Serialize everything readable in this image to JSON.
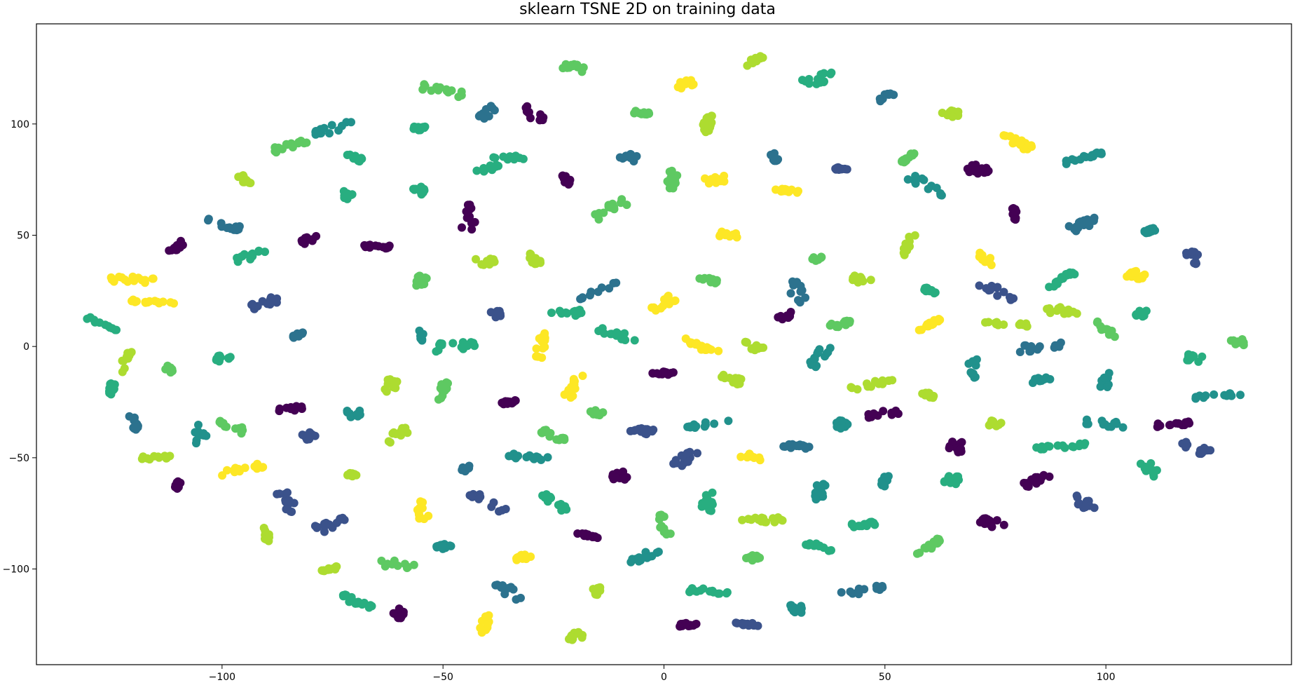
{
  "chart_data": {
    "type": "scatter",
    "title": "sklearn TSNE 2D on training data",
    "xlabel": "",
    "ylabel": "",
    "xlim": [
      -142,
      142
    ],
    "ylim": [
      -143,
      145
    ],
    "xticks": [
      -100,
      -50,
      0,
      50,
      100
    ],
    "yticks": [
      -100,
      -50,
      0,
      50,
      100
    ],
    "xtick_labels": [
      "−100",
      "−50",
      "0",
      "50",
      "100"
    ],
    "ytick_labels": [
      "−100",
      "−50",
      "0",
      "50",
      "100"
    ],
    "grid": false,
    "legend": "none",
    "colormap": "viridis",
    "palette": [
      "#440154",
      "#3b528b",
      "#2c728e",
      "#21918c",
      "#28ae80",
      "#5ec962",
      "#addc30",
      "#fde725"
    ],
    "clusters": [
      {
        "x": 0.0,
        "y": 19.0,
        "class": 7
      },
      {
        "x": 27.0,
        "y": 13.0,
        "class": 0
      },
      {
        "x": 0.0,
        "y": -12.0,
        "class": 0
      },
      {
        "x": -20.0,
        "y": -18.0,
        "class": 7
      },
      {
        "x": -17.0,
        "y": -85.0,
        "class": 0
      },
      {
        "x": -10.0,
        "y": -58.0,
        "class": 0
      },
      {
        "x": 20.0,
        "y": -50.0,
        "class": 7
      },
      {
        "x": -32.0,
        "y": -95.0,
        "class": 7
      },
      {
        "x": 5.0,
        "y": 118.0,
        "class": 7
      },
      {
        "x": -40.0,
        "y": 38.0,
        "class": 6
      },
      {
        "x": -44.0,
        "y": 58.0,
        "class": 0
      },
      {
        "x": 47.0,
        "y": -17.0,
        "class": 6
      },
      {
        "x": 50.0,
        "y": -30.0,
        "class": 0
      },
      {
        "x": 66.0,
        "y": -45.0,
        "class": 0
      },
      {
        "x": 73.0,
        "y": 39.0,
        "class": 7
      },
      {
        "x": 78.0,
        "y": 10.0,
        "class": 6
      },
      {
        "x": 60.0,
        "y": 10.0,
        "class": 7
      },
      {
        "x": 90.0,
        "y": 16.0,
        "class": 6
      },
      {
        "x": 107.0,
        "y": 32.0,
        "class": 7
      },
      {
        "x": 100.0,
        "y": 8.0,
        "class": 5
      },
      {
        "x": -115.0,
        "y": 20.0,
        "class": 7
      },
      {
        "x": -127.0,
        "y": 10.0,
        "class": 4
      },
      {
        "x": -122.0,
        "y": -7.0,
        "class": 6
      },
      {
        "x": -125.0,
        "y": -19.0,
        "class": 4
      },
      {
        "x": -112.0,
        "y": -10.0,
        "class": 5
      },
      {
        "x": -100.0,
        "y": -5.0,
        "class": 4
      },
      {
        "x": -90.0,
        "y": 20.0,
        "class": 1
      },
      {
        "x": -83.0,
        "y": 5.0,
        "class": 2
      },
      {
        "x": -85.0,
        "y": -28.0,
        "class": 0
      },
      {
        "x": -80.0,
        "y": -40.0,
        "class": 1
      },
      {
        "x": -70.0,
        "y": -58.0,
        "class": 6
      },
      {
        "x": -85.0,
        "y": -70.0,
        "class": 1
      },
      {
        "x": -110.0,
        "y": -62.0,
        "class": 0
      },
      {
        "x": -105.0,
        "y": -40.0,
        "class": 3
      },
      {
        "x": -98.0,
        "y": -36.0,
        "class": 5
      },
      {
        "x": -55.0,
        "y": -72.0,
        "class": 7
      },
      {
        "x": -45.0,
        "y": -55.0,
        "class": 2
      },
      {
        "x": -30.0,
        "y": -50.0,
        "class": 3
      },
      {
        "x": -25.0,
        "y": -40.0,
        "class": 5
      },
      {
        "x": -35.0,
        "y": -25.0,
        "class": 0
      },
      {
        "x": -50.0,
        "y": -20.0,
        "class": 5
      },
      {
        "x": -62.0,
        "y": -18.0,
        "class": 6
      },
      {
        "x": -70.0,
        "y": -30.0,
        "class": 3
      },
      {
        "x": -55.0,
        "y": 5.0,
        "class": 3
      },
      {
        "x": -48.0,
        "y": 0.0,
        "class": 4
      },
      {
        "x": -38.0,
        "y": 15.0,
        "class": 1
      },
      {
        "x": -28.0,
        "y": 0.0,
        "class": 7
      },
      {
        "x": -22.0,
        "y": 15.0,
        "class": 4
      },
      {
        "x": -15.0,
        "y": 25.0,
        "class": 2
      },
      {
        "x": -10.0,
        "y": 5.0,
        "class": 4
      },
      {
        "x": 8.0,
        "y": 0.0,
        "class": 7
      },
      {
        "x": 20.0,
        "y": 0.0,
        "class": 6
      },
      {
        "x": 15.0,
        "y": -15.0,
        "class": 6
      },
      {
        "x": 35.0,
        "y": -5.0,
        "class": 3
      },
      {
        "x": 40.0,
        "y": 10.0,
        "class": 5
      },
      {
        "x": 30.0,
        "y": 25.0,
        "class": 2
      },
      {
        "x": 10.0,
        "y": 30.0,
        "class": 5
      },
      {
        "x": 15.0,
        "y": 50.0,
        "class": 7
      },
      {
        "x": 28.0,
        "y": 70.0,
        "class": 7
      },
      {
        "x": 12.0,
        "y": 75.0,
        "class": 7
      },
      {
        "x": 2.0,
        "y": 75.0,
        "class": 5
      },
      {
        "x": -12.0,
        "y": 62.0,
        "class": 5
      },
      {
        "x": -22.0,
        "y": 75.0,
        "class": 0
      },
      {
        "x": -8.0,
        "y": 85.0,
        "class": 2
      },
      {
        "x": 10.0,
        "y": 100.0,
        "class": 6
      },
      {
        "x": 25.0,
        "y": 85.0,
        "class": 2
      },
      {
        "x": 40.0,
        "y": 80.0,
        "class": 1
      },
      {
        "x": 55.0,
        "y": 85.0,
        "class": 5
      },
      {
        "x": 60.0,
        "y": 72.0,
        "class": 3
      },
      {
        "x": 70.0,
        "y": 80.0,
        "class": 0
      },
      {
        "x": 80.0,
        "y": 60.0,
        "class": 0
      },
      {
        "x": 95.0,
        "y": 55.0,
        "class": 2
      },
      {
        "x": 110.0,
        "y": 52.0,
        "class": 3
      },
      {
        "x": 120.0,
        "y": 40.0,
        "class": 1
      },
      {
        "x": 130.0,
        "y": 2.0,
        "class": 5
      },
      {
        "x": 125.0,
        "y": -22.0,
        "class": 3
      },
      {
        "x": 115.0,
        "y": -35.0,
        "class": 0
      },
      {
        "x": 100.0,
        "y": -35.0,
        "class": 3
      },
      {
        "x": 90.0,
        "y": -45.0,
        "class": 4
      },
      {
        "x": 85.0,
        "y": -60.0,
        "class": 0
      },
      {
        "x": 95.0,
        "y": -70.0,
        "class": 1
      },
      {
        "x": 75.0,
        "y": -80.0,
        "class": 0
      },
      {
        "x": 60.0,
        "y": -90.0,
        "class": 5
      },
      {
        "x": 45.0,
        "y": -80.0,
        "class": 4
      },
      {
        "x": 35.0,
        "y": -90.0,
        "class": 4
      },
      {
        "x": 45.0,
        "y": -110.0,
        "class": 2
      },
      {
        "x": 30.0,
        "y": -118.0,
        "class": 3
      },
      {
        "x": 10.0,
        "y": -110.0,
        "class": 4
      },
      {
        "x": -5.0,
        "y": -95.0,
        "class": 3
      },
      {
        "x": -15.0,
        "y": -110.0,
        "class": 6
      },
      {
        "x": -35.0,
        "y": -110.0,
        "class": 2
      },
      {
        "x": -50.0,
        "y": -90.0,
        "class": 3
      },
      {
        "x": -60.0,
        "y": -98.0,
        "class": 5
      },
      {
        "x": -75.0,
        "y": -100.0,
        "class": 6
      },
      {
        "x": -70.0,
        "y": -115.0,
        "class": 4
      },
      {
        "x": -60.0,
        "y": -120.0,
        "class": 0
      },
      {
        "x": -40.0,
        "y": -125.0,
        "class": 7
      },
      {
        "x": -20.0,
        "y": -130.0,
        "class": 6
      },
      {
        "x": 5.0,
        "y": -125.0,
        "class": 0
      },
      {
        "x": 20.0,
        "y": -125.0,
        "class": 1
      },
      {
        "x": -110.0,
        "y": 45.0,
        "class": 0
      },
      {
        "x": -100.0,
        "y": 55.0,
        "class": 2
      },
      {
        "x": -95.0,
        "y": 75.0,
        "class": 6
      },
      {
        "x": -85.0,
        "y": 90.0,
        "class": 5
      },
      {
        "x": -75.0,
        "y": 98.0,
        "class": 3
      },
      {
        "x": -70.0,
        "y": 85.0,
        "class": 4
      },
      {
        "x": -55.0,
        "y": 98.0,
        "class": 4
      },
      {
        "x": -50.0,
        "y": 115.0,
        "class": 5
      },
      {
        "x": -40.0,
        "y": 105.0,
        "class": 2
      },
      {
        "x": -35.0,
        "y": 85.0,
        "class": 4
      },
      {
        "x": -30.0,
        "y": 105.0,
        "class": 0
      },
      {
        "x": -20.0,
        "y": 125.0,
        "class": 5
      },
      {
        "x": -5.0,
        "y": 105.0,
        "class": 5
      },
      {
        "x": 20.0,
        "y": 128.0,
        "class": 6
      },
      {
        "x": 35.0,
        "y": 120.0,
        "class": 4
      },
      {
        "x": 50.0,
        "y": 112.0,
        "class": 2
      },
      {
        "x": 65.0,
        "y": 105.0,
        "class": 6
      },
      {
        "x": 80.0,
        "y": 92.0,
        "class": 7
      },
      {
        "x": 95.0,
        "y": 85.0,
        "class": 3
      },
      {
        "x": -120.0,
        "y": 30.0,
        "class": 7
      },
      {
        "x": -95.0,
        "y": 40.0,
        "class": 4
      },
      {
        "x": -80.0,
        "y": 48.0,
        "class": 0
      },
      {
        "x": -65.0,
        "y": 45.0,
        "class": 0
      },
      {
        "x": -72.0,
        "y": 68.0,
        "class": 4
      },
      {
        "x": -55.0,
        "y": 70.0,
        "class": 4
      },
      {
        "x": -40.0,
        "y": 80.0,
        "class": 4
      },
      {
        "x": -55.0,
        "y": 30.0,
        "class": 5
      },
      {
        "x": -30.0,
        "y": 40.0,
        "class": 6
      },
      {
        "x": 55.0,
        "y": 45.0,
        "class": 6
      },
      {
        "x": 35.0,
        "y": 40.0,
        "class": 5
      },
      {
        "x": 45.0,
        "y": 30.0,
        "class": 6
      },
      {
        "x": 60.0,
        "y": 25.0,
        "class": 4
      },
      {
        "x": 75.0,
        "y": 25.0,
        "class": 1
      },
      {
        "x": 90.0,
        "y": 30.0,
        "class": 4
      },
      {
        "x": 108.0,
        "y": 15.0,
        "class": 4
      },
      {
        "x": 120.0,
        "y": -5.0,
        "class": 4
      },
      {
        "x": 85.0,
        "y": 0.0,
        "class": 2
      },
      {
        "x": 70.0,
        "y": -10.0,
        "class": 3
      },
      {
        "x": 85.0,
        "y": -15.0,
        "class": 3
      },
      {
        "x": 60.0,
        "y": -22.0,
        "class": 6
      },
      {
        "x": 75.0,
        "y": -35.0,
        "class": 6
      },
      {
        "x": 40.0,
        "y": -35.0,
        "class": 3
      },
      {
        "x": 30.0,
        "y": -45.0,
        "class": 2
      },
      {
        "x": 35.0,
        "y": -65.0,
        "class": 3
      },
      {
        "x": 50.0,
        "y": -60.0,
        "class": 3
      },
      {
        "x": 65.0,
        "y": -60.0,
        "class": 4
      },
      {
        "x": 10.0,
        "y": -35.0,
        "class": 3
      },
      {
        "x": 5.0,
        "y": -50.0,
        "class": 1
      },
      {
        "x": -5.0,
        "y": -38.0,
        "class": 1
      },
      {
        "x": -15.0,
        "y": -30.0,
        "class": 5
      },
      {
        "x": 0.0,
        "y": -80.0,
        "class": 5
      },
      {
        "x": 10.0,
        "y": -70.0,
        "class": 4
      },
      {
        "x": 22.0,
        "y": -78.0,
        "class": 6
      },
      {
        "x": 20.0,
        "y": -95.0,
        "class": 5
      },
      {
        "x": -25.0,
        "y": -70.0,
        "class": 4
      },
      {
        "x": -40.0,
        "y": -70.0,
        "class": 1
      },
      {
        "x": 100.0,
        "y": -15.0,
        "class": 3
      },
      {
        "x": 110.0,
        "y": -55.0,
        "class": 4
      },
      {
        "x": 120.0,
        "y": -45.0,
        "class": 1
      },
      {
        "x": -115.0,
        "y": -50.0,
        "class": 6
      },
      {
        "x": -120.0,
        "y": -35.0,
        "class": 2
      },
      {
        "x": -95.0,
        "y": -55.0,
        "class": 7
      },
      {
        "x": -60.0,
        "y": -40.0,
        "class": 6
      },
      {
        "x": -75.0,
        "y": -80.0,
        "class": 1
      },
      {
        "x": -90.0,
        "y": -85.0,
        "class": 6
      }
    ]
  }
}
